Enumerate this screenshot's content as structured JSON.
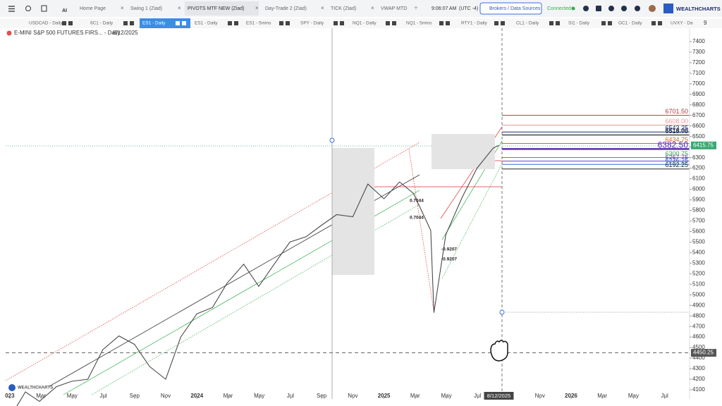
{
  "app": {
    "tabs": [
      "Home Page",
      "Swing 1 (Ziad)",
      "PIVOTS MTF NEW (Ziad)",
      "Day-Trade 2 (Ziad)",
      "TICK (Ziad)",
      "VWAP MTD"
    ],
    "ai": "AI",
    "time": "9:06:07 AM",
    "timezone": "(UTC -4)",
    "broker_button": "Brokers / Data Sources",
    "status": "Connected",
    "brand": "WEALTHCHARTS"
  },
  "chart_tabs": {
    "items": [
      "USDCAD - Daily",
      "6C1 - Daily",
      "ES1 - Daily",
      "ES1 - Daily",
      "ES1 - 5mins",
      "SPY - Daily",
      "NQ1 - Daily",
      "NQ1 - 5mins",
      "RTY1 - Daily",
      "CL1 - Daily",
      "SI1 - Daily",
      "GC1 - Daily",
      "UVXY - Da"
    ],
    "more": "9"
  },
  "chart_data": {
    "type": "line",
    "title": "E-MINI S&P 500 FUTURES FIRS... - Daily",
    "subtitle": "8/12/2025",
    "color": "#4a4a4a",
    "x": [
      "2023-01-03",
      "2023-01-31",
      "2023-02-28",
      "2023-03-31",
      "2023-04-30",
      "2023-05-31",
      "2023-06-30",
      "2023-07-31",
      "2023-08-31",
      "2023-09-30",
      "2023-10-31",
      "2023-11-30",
      "2023-12-31",
      "2024-01-31",
      "2024-02-29",
      "2024-03-31",
      "2024-04-30",
      "2024-05-31",
      "2024-06-30",
      "2024-07-31",
      "2024-08-31",
      "2024-09-30",
      "2024-10-31",
      "2024-11-30",
      "2024-12-31",
      "2025-01-31",
      "2025-02-28",
      "2025-03-31",
      "2025-04-07",
      "2025-04-30",
      "2025-05-31",
      "2025-06-30",
      "2025-07-31",
      "2025-08-12"
    ],
    "values": [
      3850,
      4080,
      3990,
      4130,
      4180,
      4200,
      4480,
      4610,
      4530,
      4320,
      4200,
      4600,
      4820,
      4880,
      5110,
      5290,
      5080,
      5300,
      5500,
      5550,
      5660,
      5760,
      5740,
      6050,
      5910,
      6070,
      5960,
      5610,
      4830,
      5570,
      5920,
      6200,
      6390,
      6415.75
    ],
    "xlim": [
      "2022-12-23",
      "2026-08-19"
    ],
    "xticks": [
      {
        "value": "2023-01-01",
        "label": "023"
      },
      {
        "value": "2023-03-01",
        "label": "Mar"
      },
      {
        "value": "2023-05-01",
        "label": "May"
      },
      {
        "value": "2023-07-01",
        "label": "Jul"
      },
      {
        "value": "2023-09-01",
        "label": "Sep"
      },
      {
        "value": "2023-11-01",
        "label": "Nov"
      },
      {
        "value": "2024-01-01",
        "label": "2024"
      },
      {
        "value": "2024-03-01",
        "label": "Mar"
      },
      {
        "value": "2024-05-01",
        "label": "May"
      },
      {
        "value": "2024-07-01",
        "label": "Jul"
      },
      {
        "value": "2024-09-01",
        "label": "Sep"
      },
      {
        "value": "2024-11-01",
        "label": "Nov"
      },
      {
        "value": "2025-01-01",
        "label": "2025"
      },
      {
        "value": "2025-03-01",
        "label": "Mar"
      },
      {
        "value": "2025-05-01",
        "label": "May"
      },
      {
        "value": "2025-07-01",
        "label": "Jul"
      },
      {
        "value": "2025-08-12",
        "label": "8/12/2025"
      },
      {
        "value": "2025-11-01",
        "label": "Nov"
      },
      {
        "value": "2026-01-01",
        "label": "2026"
      },
      {
        "value": "2026-03-01",
        "label": "Mar"
      },
      {
        "value": "2026-05-01",
        "label": "May"
      },
      {
        "value": "2026-07-01",
        "label": "Jul"
      }
    ],
    "ylim": [
      4013,
      7527
    ],
    "yticks": [
      7400,
      7300,
      7200,
      7100,
      7000,
      6900,
      6800,
      6700,
      6600,
      6500,
      6400,
      6300,
      6200,
      6100,
      6000,
      5900,
      5800,
      5700,
      5600,
      5500,
      5400,
      5300,
      5200,
      5100,
      5000,
      4900,
      4800,
      4700,
      4600,
      4500,
      4400,
      4300,
      4200,
      4100
    ],
    "levels": [
      {
        "value": 6701.5,
        "label": "6701.50",
        "color": "#b03a3a"
      },
      {
        "value": 6608,
        "label": "6608.00",
        "color": "#e39a9a"
      },
      {
        "value": 6543.25,
        "label": "6543.25",
        "color": "#1c2a6b"
      },
      {
        "value": 6513.75,
        "label": "6513.75",
        "color": "#2d56c8"
      },
      {
        "value": 6516,
        "label": "6516.00",
        "color": "#222222"
      },
      {
        "value": 6434.75,
        "label": "6434.75",
        "color": "#e0603a"
      },
      {
        "value": 6382.5,
        "label": "6382.50",
        "color": "#5b2bb5"
      },
      {
        "value": 6267.75,
        "label": "6267.75",
        "color": "#7a3ad0"
      },
      {
        "value": 6236.25,
        "label": "6236.25",
        "color": "#2d6cd0"
      },
      {
        "value": 6300.75,
        "label": "6300.75",
        "color": "#2fae4a"
      },
      {
        "value": 6192.25,
        "label": "6192.25",
        "color": "#222222"
      }
    ],
    "price_badges": [
      {
        "value": 6415.75,
        "label": "6415.75",
        "color": "#3aa872"
      },
      {
        "value": 4450.25,
        "label": "4450.25",
        "color": "#555555"
      }
    ],
    "annotations": [
      "0.7044",
      "0.7044",
      "-0.9207",
      "-0.9207"
    ],
    "watermark": "WEALTHCHARTS"
  }
}
